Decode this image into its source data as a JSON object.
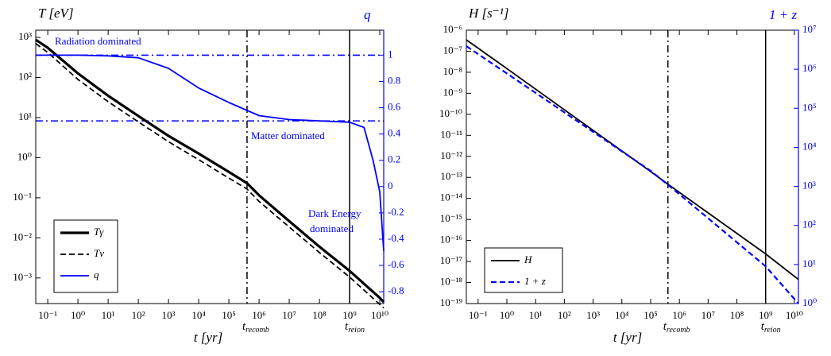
{
  "chart_data": [
    {
      "type": "line",
      "title": "T [eV]",
      "y2_title": "q",
      "xlabel": "t [yr]",
      "xscale": "log",
      "yscale": "log",
      "y2scale": "linear",
      "xlim": [
        0.04,
        13500000000.0
      ],
      "ylim": [
        0.00023,
        1510
      ],
      "y2lim": [
        -0.89,
        1.19
      ],
      "xticks": [
        {
          "value": 0.1,
          "label": "10⁻¹"
        },
        {
          "value": 1,
          "label": "10⁰"
        },
        {
          "value": 10,
          "label": "10¹"
        },
        {
          "value": 100,
          "label": "10²"
        },
        {
          "value": 1000,
          "label": "10³"
        },
        {
          "value": 10000.0,
          "label": "10⁴"
        },
        {
          "value": 100000.0,
          "label": "10⁵"
        },
        {
          "value": 1000000.0,
          "label": "10⁶"
        },
        {
          "value": 10000000.0,
          "label": "10⁷"
        },
        {
          "value": 100000000.0,
          "label": "10⁸"
        },
        {
          "value": 1000000000.0,
          "label": "10⁹"
        },
        {
          "value": 10000000000.0,
          "label": "10¹⁰"
        }
      ],
      "yticks": [
        {
          "value": 0.001,
          "label": "10⁻³"
        },
        {
          "value": 0.01,
          "label": "10⁻²"
        },
        {
          "value": 0.1,
          "label": "10⁻¹"
        },
        {
          "value": 1,
          "label": "10⁰"
        },
        {
          "value": 10,
          "label": "10¹"
        },
        {
          "value": 100,
          "label": "10²"
        },
        {
          "value": 1000,
          "label": "10³"
        }
      ],
      "y2ticks": [
        -0.8,
        -0.6,
        -0.4,
        -0.2,
        0,
        0.2,
        0.4,
        0.6,
        0.8,
        1
      ],
      "series": [
        {
          "name": "Tγ",
          "color": "#000000",
          "width": 3.2,
          "dash": false,
          "axis": "y",
          "x": [
            0.04,
            0.1,
            1,
            10,
            100,
            1000,
            10000.0,
            100000.0,
            400000.0,
            1000000.0,
            10000000.0,
            100000000.0,
            1000000000.0,
            10000000000.0,
            13500000000.0
          ],
          "values": [
            870,
            550,
            126,
            35,
            11,
            3.5,
            1.26,
            0.44,
            0.23,
            0.115,
            0.026,
            0.006,
            0.0015,
            0.00032,
            0.00025
          ]
        },
        {
          "name": "Tν",
          "color": "#000000",
          "width": 1.8,
          "dash": true,
          "axis": "y",
          "x": [
            0.04,
            0.1,
            1,
            10,
            100,
            1000,
            10000.0,
            100000.0,
            400000.0,
            1000000.0,
            10000000.0,
            100000000.0,
            1000000000.0,
            10000000000.0,
            13500000000.0
          ],
          "values": [
            700,
            420,
            89,
            25,
            7.8,
            2.5,
            0.89,
            0.31,
            0.165,
            0.081,
            0.0186,
            0.0043,
            0.00105,
            0.00022,
            0.00018
          ]
        },
        {
          "name": "q",
          "color": "#0000ff",
          "width": 1.8,
          "dash": false,
          "axis": "y2",
          "x": [
            0.04,
            1,
            10,
            100,
            1000,
            10000.0,
            100000.0,
            1000000.0,
            10000000.0,
            100000000.0,
            1000000000.0,
            3000000000.0,
            6000000000.0,
            10000000000.0,
            13500000000.0
          ],
          "values": [
            1,
            1,
            0.995,
            0.98,
            0.9,
            0.75,
            0.64,
            0.54,
            0.51,
            0.5,
            0.49,
            0.45,
            0.2,
            -0.04,
            -0.49
          ]
        }
      ],
      "hlines": [
        {
          "y": 1,
          "axis": "y2",
          "color": "#0000ff"
        },
        {
          "y": 0.5,
          "axis": "y2",
          "color": "#0000ff"
        }
      ],
      "vlines": [
        {
          "x": 400000.0,
          "dash": true,
          "label": "t",
          "sub": "recomb"
        },
        {
          "x": 1000000000.0,
          "dash": false,
          "label": "t",
          "sub": "reion"
        }
      ],
      "annotations": [
        {
          "text": "Radiation dominated"
        },
        {
          "text": "Matter dominated"
        },
        {
          "text": [
            "Dark Energy",
            "dominated"
          ]
        }
      ],
      "legend": "lower left"
    },
    {
      "type": "line",
      "title": "H [s⁻¹]",
      "y2_title": "1 + z",
      "xlabel": "t [yr]",
      "xscale": "log",
      "yscale": "log",
      "y2scale": "log",
      "xlim": [
        0.039,
        13800000000.0
      ],
      "ylim": [
        1e-19,
        1e-06
      ],
      "y2lim": [
        1,
        10000000.0
      ],
      "xticks": [
        {
          "value": 0.1,
          "label": "10⁻¹"
        },
        {
          "value": 1,
          "label": "10⁰"
        },
        {
          "value": 10,
          "label": "10¹"
        },
        {
          "value": 100,
          "label": "10²"
        },
        {
          "value": 1000,
          "label": "10³"
        },
        {
          "value": 10000.0,
          "label": "10⁴"
        },
        {
          "value": 100000.0,
          "label": "10⁵"
        },
        {
          "value": 1000000.0,
          "label": "10⁶"
        },
        {
          "value": 10000000.0,
          "label": "10⁷"
        },
        {
          "value": 100000000.0,
          "label": "10⁸"
        },
        {
          "value": 1000000000.0,
          "label": "10⁹"
        },
        {
          "value": 10000000000.0,
          "label": "10¹⁰"
        }
      ],
      "yticks": [
        {
          "value": 1e-19,
          "label": "10⁻¹⁹"
        },
        {
          "value": 1e-18,
          "label": "10⁻¹⁸"
        },
        {
          "value": 1e-17,
          "label": "10⁻¹⁷"
        },
        {
          "value": 1e-16,
          "label": "10⁻¹⁶"
        },
        {
          "value": 1e-15,
          "label": "10⁻¹⁵"
        },
        {
          "value": 1e-14,
          "label": "10⁻¹⁴"
        },
        {
          "value": 1e-13,
          "label": "10⁻¹³"
        },
        {
          "value": 1e-12,
          "label": "10⁻¹²"
        },
        {
          "value": 1e-11,
          "label": "10⁻¹¹"
        },
        {
          "value": 1e-10,
          "label": "10⁻¹⁰"
        },
        {
          "value": 1e-09,
          "label": "10⁻⁹"
        },
        {
          "value": 1e-08,
          "label": "10⁻⁸"
        },
        {
          "value": 1e-07,
          "label": "10⁻⁷"
        },
        {
          "value": 1e-06,
          "label": "10⁻⁶"
        }
      ],
      "y2ticks": [
        {
          "value": 1,
          "label": "10⁰"
        },
        {
          "value": 10,
          "label": "10¹"
        },
        {
          "value": 100,
          "label": "10²"
        },
        {
          "value": 1000,
          "label": "10³"
        },
        {
          "value": 10000.0,
          "label": "10⁴"
        },
        {
          "value": 100000.0,
          "label": "10⁵"
        },
        {
          "value": 1000000.0,
          "label": "10⁶"
        },
        {
          "value": 10000000.0,
          "label": "10⁷"
        }
      ],
      "series": [
        {
          "name": "H",
          "color": "#000000",
          "width": 1.8,
          "dash": false,
          "axis": "y",
          "x": [
            0.039,
            1,
            100000.0,
            400000.0,
            1000000000.0,
            13800000000.0
          ],
          "values": [
            3.5e-07,
            1.5e-08,
            1.9e-13,
            4.7e-14,
            2.3e-17,
            1.4e-18
          ]
        },
        {
          "name": "1 + z",
          "color": "#0000ff",
          "width": 2.2,
          "dash": true,
          "axis": "y2",
          "x": [
            0.039,
            1,
            100000.0,
            400000.0,
            1000000000.0,
            13800000000.0
          ],
          "values": [
            3900000.0,
            780000.0,
            2500,
            1100,
            9,
            1
          ]
        }
      ],
      "hlines": [],
      "vlines": [
        {
          "x": 400000.0,
          "dash": true,
          "label": "t",
          "sub": "recomb"
        },
        {
          "x": 1000000000.0,
          "dash": false,
          "label": "t",
          "sub": "reion"
        }
      ],
      "annotations": [],
      "legend": "lower left"
    }
  ]
}
